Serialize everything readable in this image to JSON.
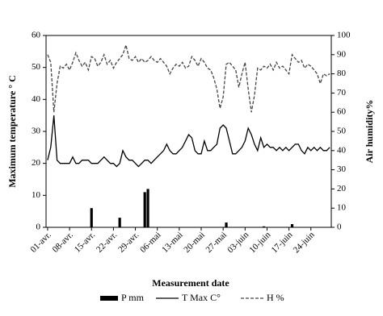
{
  "chart_data": {
    "type": "combo",
    "ylabel": "Maximum temperature ° C",
    "y2label": "Air humidity%",
    "xlabel": "Measurement date",
    "categories": [
      "01-avr.",
      null,
      null,
      null,
      null,
      null,
      null,
      "08-avr.",
      null,
      null,
      null,
      null,
      null,
      null,
      "15-avr.",
      null,
      null,
      null,
      null,
      null,
      null,
      "22-avr.",
      null,
      null,
      null,
      null,
      null,
      null,
      "29-avr.",
      null,
      null,
      null,
      null,
      null,
      null,
      "06-mai",
      null,
      null,
      null,
      null,
      null,
      null,
      "13-mai",
      null,
      null,
      null,
      null,
      null,
      null,
      "20-mai",
      null,
      null,
      null,
      null,
      null,
      null,
      "27-mai",
      null,
      null,
      null,
      null,
      null,
      null,
      "03-juin",
      null,
      null,
      null,
      null,
      null,
      null,
      "10-juin",
      null,
      null,
      null,
      null,
      null,
      null,
      "17-juin",
      null,
      null,
      null,
      null,
      null,
      null,
      "24-juin",
      null,
      null,
      null,
      null,
      null,
      null
    ],
    "ylim": [
      0,
      60
    ],
    "yticks": [
      0,
      10,
      20,
      30,
      40,
      50,
      60
    ],
    "y2lim": [
      0,
      100
    ],
    "y2ticks": [
      0,
      10,
      20,
      30,
      40,
      50,
      60,
      70,
      80,
      90,
      100
    ],
    "series": [
      {
        "name": "P mm",
        "type": "bar",
        "color": "#000000",
        "values": [
          0,
          0,
          0,
          0,
          0,
          0,
          0,
          0,
          0,
          0,
          0,
          0,
          0,
          0,
          6,
          0,
          0,
          0,
          0,
          0,
          0,
          0,
          0,
          3,
          0,
          0,
          0,
          0,
          0,
          0,
          0,
          11,
          12,
          0,
          0,
          0,
          0,
          0,
          0,
          0,
          0,
          0,
          0,
          0,
          0,
          0,
          0,
          0,
          0,
          0,
          0,
          0,
          0,
          0,
          0,
          0,
          0,
          1.5,
          0,
          0,
          0,
          0,
          0,
          0,
          0,
          0,
          0,
          0,
          0,
          0.3,
          0,
          0,
          0,
          0,
          0,
          0,
          0,
          0,
          1,
          0,
          0,
          0,
          0,
          0,
          0,
          0,
          0,
          0,
          0,
          0,
          0
        ]
      },
      {
        "name": "T Max C°",
        "type": "line",
        "style": "solid",
        "color": "#000000",
        "values": [
          21,
          25,
          35,
          21,
          20,
          20,
          20,
          20,
          22,
          20,
          20,
          21,
          21,
          21,
          20,
          20,
          20,
          21,
          22,
          21,
          20,
          20,
          19,
          20,
          24,
          22,
          21,
          21,
          20,
          19,
          20,
          21,
          21,
          20,
          21,
          22,
          23,
          24,
          26,
          24,
          23,
          23,
          24,
          25,
          27,
          29,
          28,
          24,
          23,
          23,
          27,
          24,
          24,
          25,
          26,
          31,
          32,
          31,
          27,
          23,
          23,
          24,
          25,
          27,
          31,
          29,
          26,
          24,
          28,
          25,
          26,
          25,
          25,
          24,
          25,
          24,
          25,
          24,
          25,
          26,
          26,
          24,
          23,
          25,
          24,
          25,
          24,
          25,
          24,
          24,
          25
        ]
      },
      {
        "name": "H %",
        "type": "line",
        "style": "dashed",
        "axis": "y2",
        "color": "#444444",
        "values": [
          90,
          86,
          60,
          75,
          84,
          83,
          85,
          82,
          86,
          91,
          87,
          84,
          86,
          82,
          89,
          88,
          84,
          86,
          90,
          85,
          87,
          83,
          86,
          88,
          90,
          95,
          88,
          87,
          89,
          86,
          88,
          86,
          87,
          89,
          87,
          86,
          88,
          86,
          84,
          80,
          83,
          85,
          84,
          86,
          83,
          84,
          89,
          87,
          84,
          88,
          86,
          83,
          82,
          78,
          72,
          62,
          68,
          85,
          86,
          84,
          82,
          73,
          80,
          86,
          72,
          60,
          69,
          83,
          82,
          84,
          83,
          85,
          82,
          86,
          83,
          84,
          82,
          80,
          90,
          88,
          86,
          87,
          83,
          85,
          84,
          82,
          80,
          75,
          80,
          79,
          80
        ]
      }
    ]
  }
}
